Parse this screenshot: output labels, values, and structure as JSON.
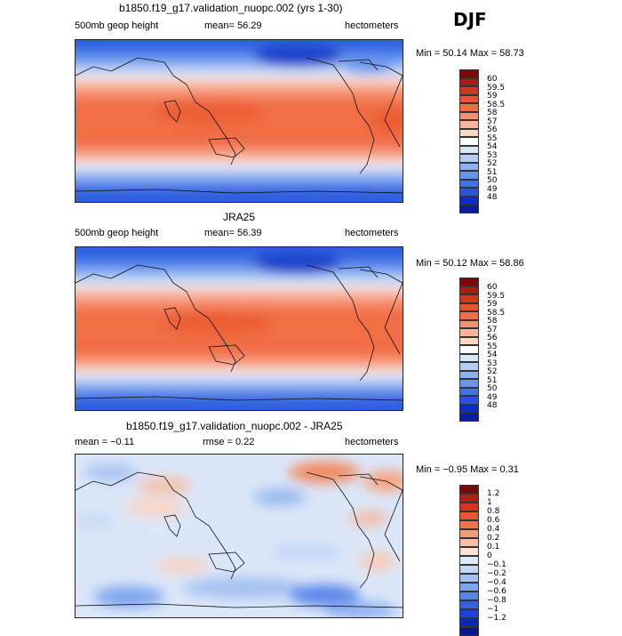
{
  "season": "DJF",
  "panels": [
    {
      "title": "b1850.f19_g17.validation_nuopc.002 (yrs 1-30)",
      "left_label": "500mb geop height",
      "mid_label": "mean=  56.29",
      "right_label": "hectometers",
      "minmax": "Min =  50.14 Max =  58.73",
      "colorbar": {
        "labels": [
          "60",
          "59.5",
          "59",
          "58.5",
          "58",
          "57",
          "56",
          "55",
          "54",
          "53",
          "52",
          "51",
          "50",
          "49",
          "48"
        ],
        "colors": [
          "#7a0a0a",
          "#a81e14",
          "#cf3a1e",
          "#e8542e",
          "#f16d45",
          "#f69070",
          "#fab49a",
          "#fdd7c6",
          "#ffffff",
          "#d6e6fb",
          "#b3cdf6",
          "#8db1f0",
          "#6894ec",
          "#4272e6",
          "#2a52dc",
          "#0b2cc8",
          "#0a1a9e"
        ]
      }
    },
    {
      "title": "JRA25",
      "left_label": "500mb geop height",
      "mid_label": "mean=  56.39",
      "right_label": "hectometers",
      "minmax": "Min =  50.12 Max =  58.86",
      "colorbar": {
        "labels": [
          "60",
          "59.5",
          "59",
          "58.5",
          "58",
          "57",
          "56",
          "55",
          "54",
          "53",
          "52",
          "51",
          "50",
          "49",
          "48"
        ],
        "colors": [
          "#7a0a0a",
          "#a81e14",
          "#cf3a1e",
          "#e8542e",
          "#f16d45",
          "#f69070",
          "#fab49a",
          "#fdd7c6",
          "#ffffff",
          "#d6e6fb",
          "#b3cdf6",
          "#8db1f0",
          "#6894ec",
          "#4272e6",
          "#2a52dc",
          "#0b2cc8",
          "#0a1a9e"
        ]
      }
    },
    {
      "title": "b1850.f19_g17.validation_nuopc.002 - JRA25",
      "left_label": "mean =  −0.11",
      "mid_label": "rmse =   0.22",
      "right_label": "hectometers",
      "minmax": "Min =  −0.95 Max =   0.31",
      "colorbar": {
        "labels": [
          "1.2",
          "1",
          "0.8",
          "0.6",
          "0.4",
          "0.2",
          "0.1",
          "0",
          "−0.1",
          "−0.2",
          "−0.4",
          "−0.6",
          "−0.8",
          "−1",
          "−1.2"
        ],
        "colors": [
          "#7a0a0a",
          "#b01e14",
          "#d4381c",
          "#ea5530",
          "#f2744c",
          "#f69a7c",
          "#f9bea6",
          "#fce0d4",
          "#ddeaf9",
          "#c2d8f6",
          "#a2c0f2",
          "#7ba3ee",
          "#5583ea",
          "#3262e2",
          "#1a44d6",
          "#0a26b4",
          "#081a8a"
        ]
      }
    }
  ]
}
